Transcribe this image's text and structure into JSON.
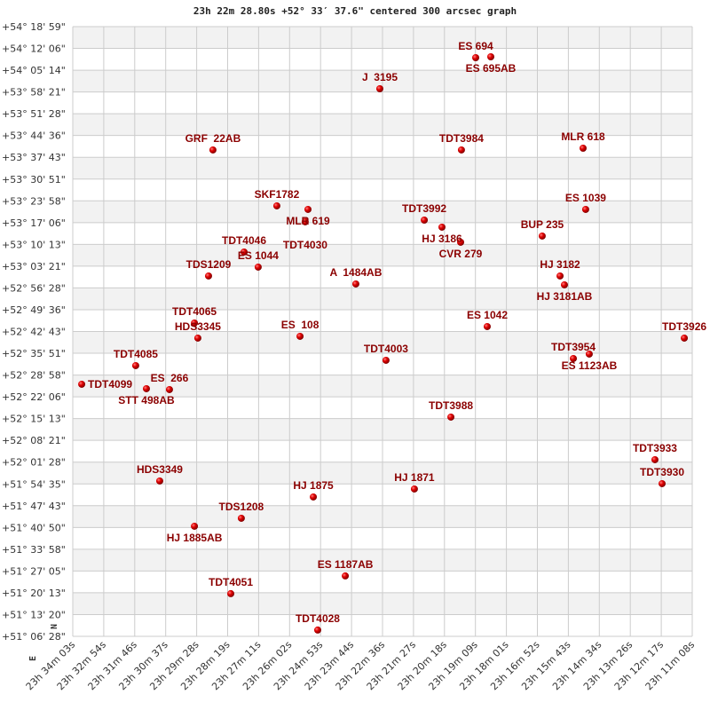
{
  "chart_data": {
    "type": "scatter",
    "title": "23h 22m 28.80s +52° 33′ 37.6\" centered 300 arcsec graph",
    "xlabel": "",
    "ylabel": "",
    "x_unit": "RA (hours)",
    "y_unit": "Dec (degrees)",
    "xlim": [
      23.5675,
      23.1856
    ],
    "ylim": [
      51.1078,
      54.3164
    ],
    "x_reversed": true,
    "grid": true,
    "compass": {
      "north": "N",
      "east": "E"
    },
    "colors": {
      "point": "#dd0000",
      "label": "#8b0000",
      "grid": "#cccccc",
      "band": "#f2f2f2"
    },
    "x_ticks": [
      "23h 34m 03s",
      "23h 32m 54s",
      "23h 31m 46s",
      "23h 30m 37s",
      "23h 29m 28s",
      "23h 28m 19s",
      "23h 27m 11s",
      "23h 26m 02s",
      "23h 24m 53s",
      "23h 23m 44s",
      "23h 22m 36s",
      "23h 21m 27s",
      "23h 20m 18s",
      "23h 19m 09s",
      "23h 18m 01s",
      "23h 16m 52s",
      "23h 15m 43s",
      "23h 14m 34s",
      "23h 13m 26s",
      "23h 12m 17s",
      "23h 11m 08s"
    ],
    "y_ticks": [
      "+54° 18' 59\"",
      "+54° 12' 06\"",
      "+54° 05' 14\"",
      "+53° 58' 21\"",
      "+53° 51' 28\"",
      "+53° 44' 36\"",
      "+53° 37' 43\"",
      "+53° 30' 51\"",
      "+53° 23' 58\"",
      "+53° 17' 06\"",
      "+53° 10' 13\"",
      "+53° 03' 21\"",
      "+52° 56' 28\"",
      "+52° 49' 36\"",
      "+52° 42' 43\"",
      "+52° 35' 51\"",
      "+52° 28' 58\"",
      "+52° 22' 06\"",
      "+52° 15' 13\"",
      "+52° 08' 21\"",
      "+52° 01' 28\"",
      "+51° 54' 35\"",
      "+51° 47' 43\"",
      "+51° 40' 50\"",
      "+51° 33' 58\"",
      "+51° 27' 05\"",
      "+51° 20' 13\"",
      "+51° 13' 20\"",
      "+51° 06' 28\""
    ],
    "points": [
      {
        "name": "ES 694",
        "ra": 23.3191,
        "dec": 54.1529
      },
      {
        "name": "ES 695AB",
        "ra": 23.3098,
        "dec": 54.1576
      },
      {
        "name": "J  3195",
        "ra": 23.3782,
        "dec": 53.9895
      },
      {
        "name": "GRF  22AB",
        "ra": 23.4811,
        "dec": 53.6673
      },
      {
        "name": "TDT3984",
        "ra": 23.3279,
        "dec": 53.6673
      },
      {
        "name": "MLR 618",
        "ra": 23.2529,
        "dec": 53.6766
      },
      {
        "name": "SKF1782",
        "ra": 23.4417,
        "dec": 53.3731
      },
      {
        "name": "MLR 619",
        "ra": 23.4225,
        "dec": 53.3544
      },
      {
        "name": "TDT4030",
        "ra": 23.4242,
        "dec": 53.289
      },
      {
        "name": "ES 1039",
        "ra": 23.2513,
        "dec": 53.3544
      },
      {
        "name": "TDT3992",
        "ra": 23.3508,
        "dec": 53.2983
      },
      {
        "name": "HJ 3186",
        "ra": 23.3399,
        "dec": 53.261
      },
      {
        "name": "CVR 279",
        "ra": 23.3284,
        "dec": 53.1816
      },
      {
        "name": "BUP 235",
        "ra": 23.2781,
        "dec": 53.2143
      },
      {
        "name": "TDT4046",
        "ra": 23.4619,
        "dec": 53.1302
      },
      {
        "name": "ES 1044",
        "ra": 23.4532,
        "dec": 53.0508
      },
      {
        "name": "TDS1209",
        "ra": 23.4838,
        "dec": 53.0041
      },
      {
        "name": "A  1484AB",
        "ra": 23.393,
        "dec": 52.9621
      },
      {
        "name": "HJ 3182",
        "ra": 23.2671,
        "dec": 53.0041
      },
      {
        "name": "HJ 3181AB",
        "ra": 23.2644,
        "dec": 52.9574
      },
      {
        "name": "TDT4065",
        "ra": 23.4925,
        "dec": 52.7566
      },
      {
        "name": "HDS3345",
        "ra": 23.4904,
        "dec": 52.6772
      },
      {
        "name": "ES  108",
        "ra": 23.4274,
        "dec": 52.6866
      },
      {
        "name": "ES 1042",
        "ra": 23.312,
        "dec": 52.7379
      },
      {
        "name": "TDT3926",
        "ra": 23.1905,
        "dec": 52.6772
      },
      {
        "name": "TDT4085",
        "ra": 23.5287,
        "dec": 52.5325
      },
      {
        "name": "TDT4099",
        "ra": 23.562,
        "dec": 52.4344
      },
      {
        "name": "STT 498AB",
        "ra": 23.5221,
        "dec": 52.411
      },
      {
        "name": "ES  266",
        "ra": 23.5079,
        "dec": 52.4064
      },
      {
        "name": "TDT4003",
        "ra": 23.3744,
        "dec": 52.5605
      },
      {
        "name": "TDT3954",
        "ra": 23.2589,
        "dec": 52.5698
      },
      {
        "name": "ES 1123AB",
        "ra": 23.2491,
        "dec": 52.5932
      },
      {
        "name": "TDT3988",
        "ra": 23.3344,
        "dec": 52.2616
      },
      {
        "name": "TDT3933",
        "ra": 23.2086,
        "dec": 52.0374
      },
      {
        "name": "TDT3930",
        "ra": 23.2042,
        "dec": 51.9113
      },
      {
        "name": "HDS3349",
        "ra": 23.5139,
        "dec": 51.9254
      },
      {
        "name": "HJ 1875",
        "ra": 23.4192,
        "dec": 51.8413
      },
      {
        "name": "HJ 1871",
        "ra": 23.3569,
        "dec": 51.8833
      },
      {
        "name": "TDS1208",
        "ra": 23.4636,
        "dec": 51.7292
      },
      {
        "name": "HJ 1885AB",
        "ra": 23.4925,
        "dec": 51.6872
      },
      {
        "name": "ES 1187AB",
        "ra": 23.3995,
        "dec": 51.4257
      },
      {
        "name": "TDT4051",
        "ra": 23.4701,
        "dec": 51.3323
      },
      {
        "name": "TDT4028",
        "ra": 23.4165,
        "dec": 51.1408
      }
    ]
  }
}
